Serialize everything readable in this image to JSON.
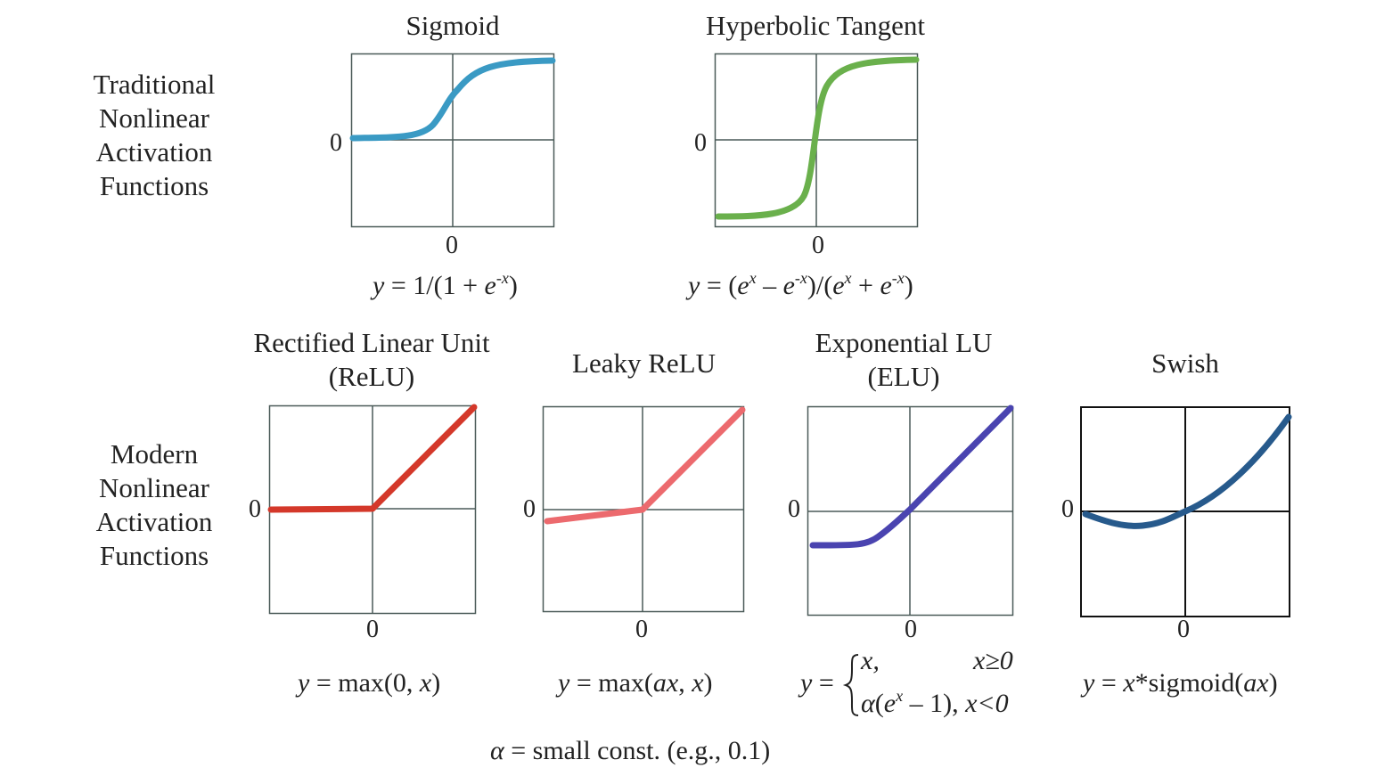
{
  "row_labels": {
    "traditional": [
      "Traditional",
      "Nonlinear",
      "Activation",
      "Functions"
    ],
    "modern": [
      "Modern",
      "Nonlinear",
      "Activation",
      "Functions"
    ]
  },
  "zero_label": "0",
  "panels": {
    "sigmoid": {
      "title": "Sigmoid",
      "color": "#3a9ac4"
    },
    "tanh": {
      "title": "Hyperbolic Tangent",
      "color": "#6ab04c"
    },
    "relu": {
      "title_line1": "Rectified Linear Unit",
      "title_line2": "(ReLU)",
      "color": "#d4382a"
    },
    "leaky": {
      "title": "Leaky ReLU",
      "color": "#ec6a6e"
    },
    "elu": {
      "title_line1": "Exponential LU",
      "title_line2": "(ELU)",
      "color": "#4a44b0"
    },
    "swish": {
      "title": "Swish",
      "color": "#275a8c"
    }
  },
  "formulas": {
    "y": "y",
    "eq": " = ",
    "sigmoid": {
      "a": "1/(1 + ",
      "e": "e",
      "exp": "-x",
      "b": ")"
    },
    "tanh": {
      "a": "(",
      "e1": "e",
      "exp1": "x",
      "m": " – ",
      "e2": "e",
      "exp2": "-x",
      "c": ")/(",
      "e3": "e",
      "exp3": "x",
      "p": " + ",
      "e4": "e",
      "exp4": "-x",
      "d": ")"
    },
    "relu": {
      "a": "max(0, ",
      "x": "x",
      "b": ")"
    },
    "leaky": {
      "a": "max(",
      "ax": "ax",
      "c": ", ",
      "x": "x",
      "b": ")"
    },
    "elu": {
      "case1_val": "x,",
      "case1_cond": "x≥0",
      "alpha": "α",
      "case2_a": "(",
      "e": "e",
      "exp": "x",
      "case2_b": " – 1), ",
      "case2_cond": "x<0"
    },
    "swish": {
      "x": "x",
      "a": "*sigmoid(",
      "ax": "ax",
      "b": ")"
    }
  },
  "note": {
    "alpha": "α",
    "text": " = small const. (e.g., 0.1)"
  }
}
